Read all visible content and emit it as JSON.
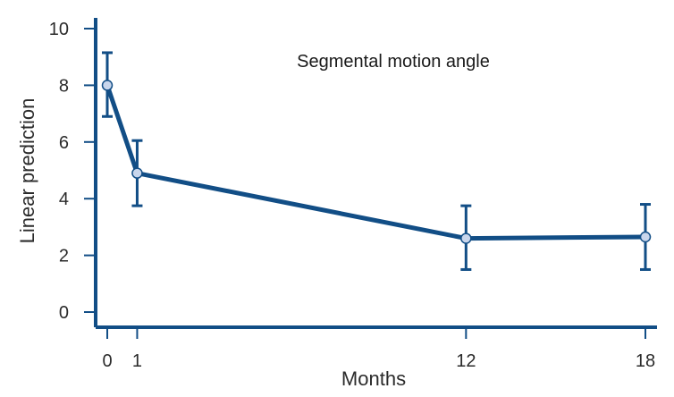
{
  "chart_data": {
    "type": "line",
    "title": "",
    "annotation": "Segmental motion angle",
    "xlabel": "Months",
    "ylabel": "Linear prediction",
    "xlim": [
      0,
      18
    ],
    "ylim": [
      0,
      10
    ],
    "x_ticks": [
      0,
      1,
      12,
      18
    ],
    "y_ticks": [
      0,
      2,
      4,
      6,
      8,
      10
    ],
    "grid": false,
    "series": [
      {
        "x": [
          0,
          1,
          12,
          18
        ],
        "values": [
          8.0,
          4.9,
          2.6,
          2.65
        ],
        "ci_lower": [
          6.9,
          3.75,
          1.5,
          1.5
        ],
        "ci_upper": [
          9.15,
          6.05,
          3.75,
          3.8
        ]
      }
    ],
    "colors": {
      "line": "#124e86",
      "axis": "#124e86",
      "marker_fill": "#c9d6ec",
      "marker_stroke": "#124e86"
    }
  }
}
